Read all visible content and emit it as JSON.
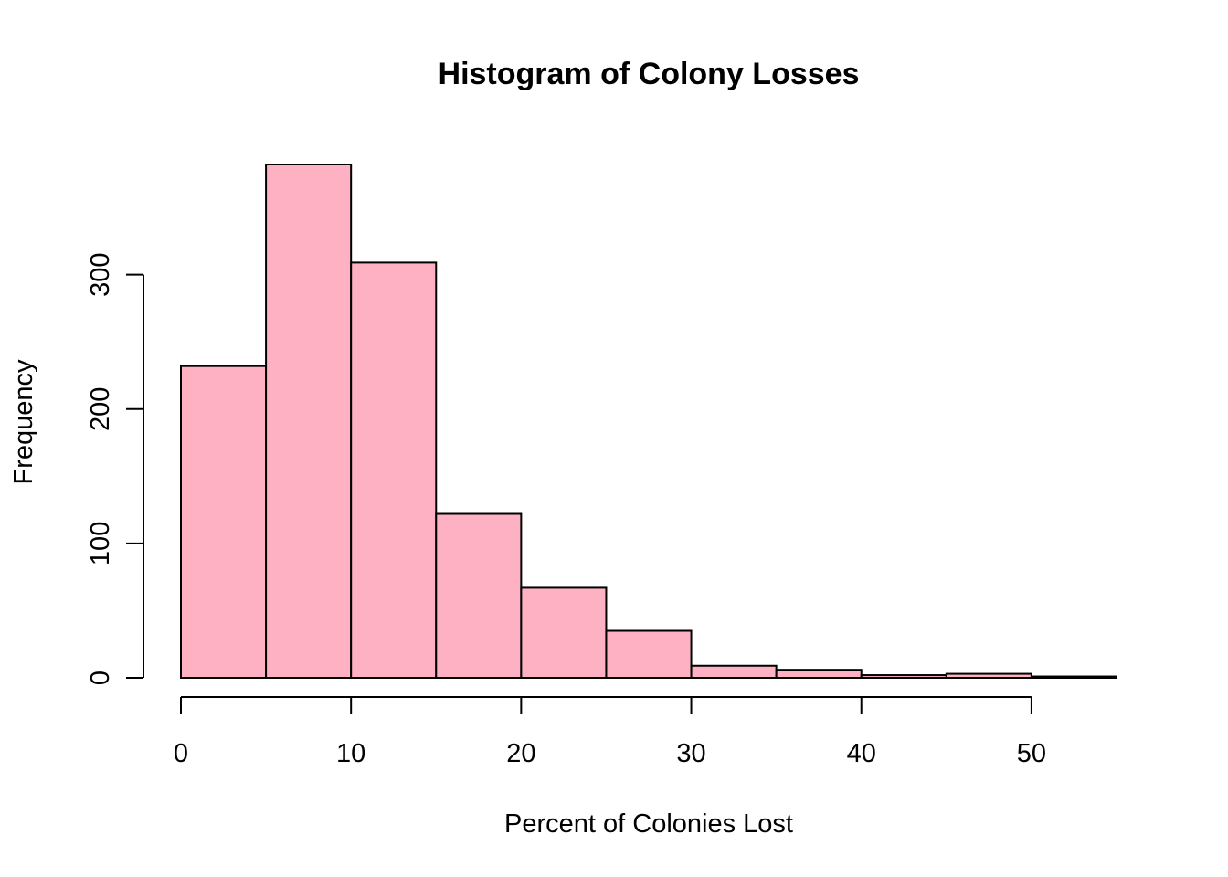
{
  "chart_data": {
    "type": "bar",
    "title": "Histogram of Colony Losses",
    "xlabel": "Percent of Colonies Lost",
    "ylabel": "Frequency",
    "bin_edges": [
      0,
      5,
      10,
      15,
      20,
      25,
      30,
      35,
      40,
      45,
      50,
      55
    ],
    "values": [
      232,
      382,
      309,
      122,
      67,
      35,
      9,
      6,
      2,
      3,
      1
    ],
    "xlim": [
      0,
      55
    ],
    "ylim": [
      0,
      382
    ],
    "x_ticks": [
      0,
      10,
      20,
      30,
      40,
      50
    ],
    "y_ticks": [
      0,
      100,
      200,
      300
    ],
    "bar_color": "#FDB1C3",
    "grid": false,
    "legend": "none"
  }
}
